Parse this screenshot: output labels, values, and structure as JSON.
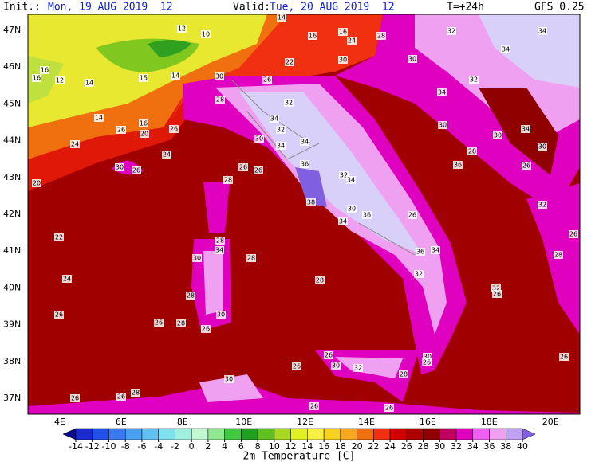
{
  "header": {
    "init_label": "Init.:",
    "init": "Mon, 19 AUG 2019  12",
    "valid_label": "Valid:",
    "valid": "Tue, 20 AUG 2019  12",
    "step": "T=+24h",
    "model": "GFS 0.25"
  },
  "lat_labels": [
    "47N",
    "46N",
    "45N",
    "44N",
    "43N",
    "42N",
    "41N",
    "40N",
    "39N",
    "38N",
    "37N"
  ],
  "lon_labels": [
    "4E",
    "6E",
    "8E",
    "10E",
    "12E",
    "14E",
    "16E",
    "18E",
    "20E"
  ],
  "colorbar": {
    "title": "2m Temperature [C]",
    "levels": [
      -14,
      -12,
      -10,
      -8,
      -6,
      -4,
      -2,
      0,
      2,
      4,
      6,
      8,
      10,
      12,
      14,
      16,
      18,
      20,
      22,
      24,
      26,
      28,
      30,
      32,
      34,
      36,
      38,
      40
    ],
    "colors": [
      "#0a0a8c",
      "#1a2ad0",
      "#2050e8",
      "#3a78f0",
      "#4aa0f0",
      "#60c0f0",
      "#80e0f0",
      "#a0f0e0",
      "#c0f8d0",
      "#90e890",
      "#40c840",
      "#20a020",
      "#60c020",
      "#a8d820",
      "#e0f020",
      "#f8f040",
      "#f8d020",
      "#f8a820",
      "#f07010",
      "#f03010",
      "#d00000",
      "#b00000",
      "#900000",
      "#c00060",
      "#e000c0",
      "#f060f0",
      "#f0a0f0",
      "#c0a0f0",
      "#8060e0"
    ]
  },
  "map_labels": [
    12,
    10,
    14,
    16,
    16,
    24,
    28,
    32,
    34,
    16,
    16,
    12,
    14,
    15,
    14,
    30,
    26,
    22,
    30,
    30,
    34,
    14,
    16,
    26,
    20,
    26,
    24,
    24,
    28,
    32,
    30,
    32,
    34,
    34,
    34,
    34,
    32,
    30,
    30,
    34,
    30,
    28,
    36,
    26,
    30,
    26,
    20,
    26,
    26,
    28,
    36,
    38,
    32,
    34,
    30,
    36,
    34,
    26,
    22,
    28,
    34,
    30,
    28,
    36,
    34,
    32,
    24,
    28,
    28,
    32,
    26,
    26,
    26,
    28,
    26,
    30,
    26,
    30,
    32,
    26,
    30,
    26,
    28,
    26,
    30,
    28,
    26,
    26,
    26,
    26,
    32,
    26,
    28
  ]
}
